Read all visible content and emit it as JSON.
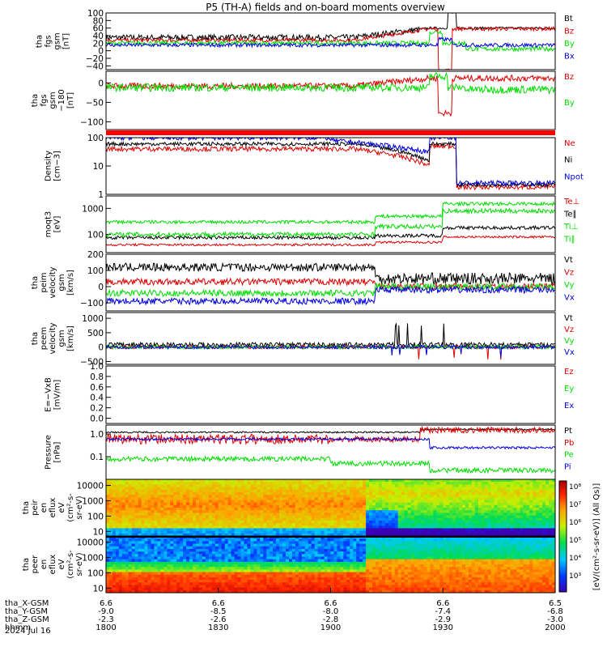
{
  "title": "P5 (TH-A) fields and on-board moments overview",
  "date": "2024 Jul 16",
  "colorbar_label": "[eV/(cm²-s-sr-eV)] (All Qs)]",
  "ephemeris": {
    "labels": [
      "tha_X-GSM",
      "tha_Y-GSM",
      "tha_Z-GSM",
      "hhmm"
    ],
    "columns": [
      {
        "x": "6.6",
        "y": "-9.0",
        "z": "-2.3",
        "t": "1800"
      },
      {
        "x": "6.6",
        "y": "-8.5",
        "z": "-2.6",
        "t": "1830"
      },
      {
        "x": "6.6",
        "y": "-8.0",
        "z": "-2.8",
        "t": "1900"
      },
      {
        "x": "6.6",
        "y": "-7.4",
        "z": "-2.9",
        "t": "1930"
      },
      {
        "x": "6.5",
        "y": "-6.8",
        "z": "-3.0",
        "t": "2000"
      }
    ]
  },
  "chart_data": [
    {
      "type": "line",
      "ylabel": [
        "tha",
        "fgs",
        "gsm",
        "[nT]"
      ],
      "ylim": [
        -50,
        100
      ],
      "yticks": [
        "100",
        "80",
        "60",
        "40",
        "20",
        "0",
        "−20",
        "−40"
      ],
      "series": [
        {
          "name": "Bt",
          "color": "#000000"
        },
        {
          "name": "Bz",
          "color": "#dd0000"
        },
        {
          "name": "By",
          "color": "#00dd00"
        },
        {
          "name": "Bx",
          "color": "#0000dd"
        }
      ]
    },
    {
      "type": "line",
      "ylabel": [
        "tha",
        "fgs",
        "gsm",
        "−180",
        "[nT]"
      ],
      "ylim": [
        -120,
        30
      ],
      "yticks": [
        "0",
        "−50",
        "−100"
      ],
      "series": [
        {
          "name": "Bz",
          "color": "#dd0000"
        },
        {
          "name": "By",
          "color": "#00dd00"
        }
      ]
    },
    {
      "type": "line",
      "ylabel": [
        "Density",
        "[cm−3]"
      ],
      "ylim": [
        1,
        100
      ],
      "scale": "log",
      "yticks": [
        "100",
        "10",
        "1"
      ],
      "series": [
        {
          "name": "Ne",
          "color": "#dd0000"
        },
        {
          "name": "Ni",
          "color": "#000000"
        },
        {
          "name": "Npot",
          "color": "#0000dd"
        }
      ]
    },
    {
      "type": "line",
      "ylabel": [
        "moqt3",
        "[eV]"
      ],
      "ylim": [
        20,
        3000
      ],
      "scale": "log",
      "yticks": [
        "1000",
        "100"
      ],
      "series": [
        {
          "name": "Te⊥",
          "color": "#dd0000"
        },
        {
          "name": "Te∥",
          "color": "#000000"
        },
        {
          "name": "Ti⊥",
          "color": "#00dd00"
        },
        {
          "name": "Ti∥",
          "color": "#00dd00"
        }
      ]
    },
    {
      "type": "line",
      "ylabel": [
        "tha",
        "peim",
        "velocity",
        "gsm",
        "[km/s]"
      ],
      "ylim": [
        -150,
        200
      ],
      "yticks": [
        "200",
        "100",
        "0",
        "−100"
      ],
      "series": [
        {
          "name": "Vt",
          "color": "#000000"
        },
        {
          "name": "Vz",
          "color": "#dd0000"
        },
        {
          "name": "Vy",
          "color": "#00dd00"
        },
        {
          "name": "Vx",
          "color": "#0000dd"
        }
      ]
    },
    {
      "type": "line",
      "ylabel": [
        "tha",
        "peem",
        "velocity",
        "gsm",
        "[km/s]"
      ],
      "ylim": [
        -600,
        1200
      ],
      "yticks": [
        "1000",
        "500",
        "0",
        "−500"
      ],
      "series": [
        {
          "name": "Vt",
          "color": "#000000"
        },
        {
          "name": "Vz",
          "color": "#dd0000"
        },
        {
          "name": "Vy",
          "color": "#00dd00"
        },
        {
          "name": "Vx",
          "color": "#0000dd"
        }
      ]
    },
    {
      "type": "line",
      "ylabel": [
        "E=−VxB",
        "[mV/m]"
      ],
      "ylim": [
        -0.1,
        1.0
      ],
      "yticks": [
        "1.0",
        "0.8",
        "0.6",
        "0.4",
        "0.2",
        "0.0"
      ],
      "series": [
        {
          "name": "Ez",
          "color": "#dd0000"
        },
        {
          "name": "Ey",
          "color": "#00dd00"
        },
        {
          "name": "Ex",
          "color": "#0000dd"
        }
      ]
    },
    {
      "type": "line",
      "ylabel": [
        "Pressure",
        "[nPa]"
      ],
      "ylim": [
        0.01,
        2.5
      ],
      "scale": "log",
      "yticks": [
        "1.0",
        "0.1"
      ],
      "series": [
        {
          "name": "Pt",
          "color": "#000000"
        },
        {
          "name": "Pb",
          "color": "#dd0000"
        },
        {
          "name": "Pe",
          "color": "#00dd00"
        },
        {
          "name": "Pi",
          "color": "#0000dd"
        }
      ]
    },
    {
      "type": "heatmap",
      "ylabel": [
        "tha",
        "peir",
        "en",
        "eflux",
        "eV",
        "(cm²-s-",
        "sr-eV)"
      ],
      "ylim": [
        5,
        25000
      ],
      "scale": "log",
      "yticks": [
        "10000",
        "1000",
        "100",
        "10"
      ]
    },
    {
      "type": "heatmap",
      "ylabel": [
        "tha",
        "peer",
        "en",
        "eflux",
        "eV",
        "(cm²-s-",
        "sr-eV)"
      ],
      "ylim": [
        5,
        25000
      ],
      "scale": "log",
      "yticks": [
        "10000",
        "1000",
        "100",
        "10"
      ]
    }
  ],
  "colorbar_ticks": [
    "10⁸",
    "10⁷",
    "10⁶",
    "10⁵",
    "10⁴",
    "10³"
  ],
  "colorbar_top": "10⁸",
  "colorbar_bottom": "10⁰"
}
